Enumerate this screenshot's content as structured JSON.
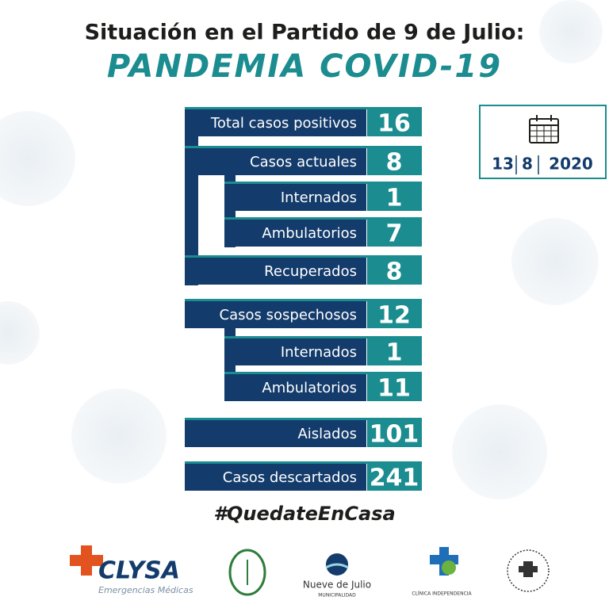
{
  "header": {
    "title": "Situación en el Partido de 9 de Julio:",
    "subtitle": "PANDEMIA COVID-19"
  },
  "date": {
    "day": 13,
    "month": 8,
    "year": 2020
  },
  "rows": [
    {
      "label": "Total casos positivos",
      "value": 16
    },
    {
      "label": "Casos actuales",
      "value": 8
    },
    {
      "label": "Internados",
      "value": 1
    },
    {
      "label": "Ambulatorios",
      "value": 7
    },
    {
      "label": "Recuperados",
      "value": 8
    },
    {
      "label": "Casos sospechosos",
      "value": 12
    },
    {
      "label": "Internados",
      "value": 1
    },
    {
      "label": "Ambulatorios",
      "value": 11
    },
    {
      "label": "Aislados",
      "value": 101
    },
    {
      "label": "Casos descartados",
      "value": 241
    }
  ],
  "hashtag": "#QuedateEnCasa",
  "logos": [
    {
      "name": "CLYSA",
      "tagline": "Emergencias Médicas"
    },
    {
      "name": "Nueve de Julio",
      "tagline": "MUNICIPALIDAD"
    },
    {
      "name": "CLÍNICA INDEPENDENCIA"
    }
  ]
}
